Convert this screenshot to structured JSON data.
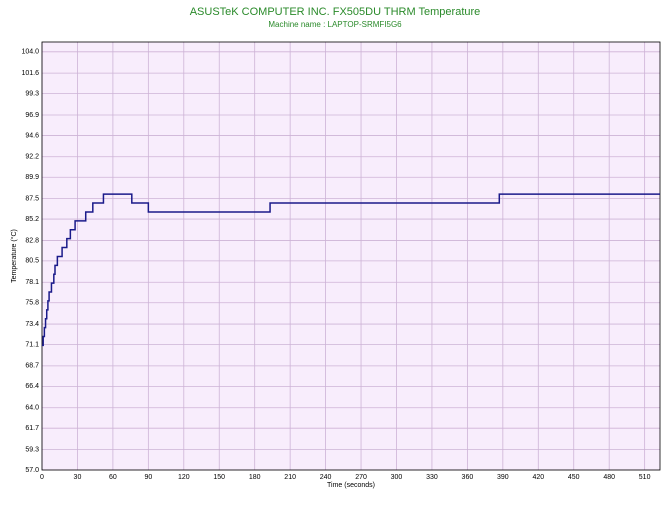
{
  "chart_data": {
    "type": "line",
    "title": "ASUSTeK COMPUTER INC. FX505DU THRM Temperature",
    "subtitle": "Machine name : LAPTOP-SRMFI5G6",
    "x_label": "Time (seconds)",
    "y_label": "Temperature (°C)",
    "drawstyle": "steps-post",
    "grid": true,
    "background": "#f8edfc",
    "grid_color": "#cdb3d6",
    "xlim": [
      0,
      523
    ],
    "xticks": [
      0,
      30,
      60,
      90,
      120,
      150,
      180,
      210,
      240,
      270,
      300,
      330,
      360,
      390,
      420,
      450,
      480,
      510
    ],
    "ylim": [
      57.0,
      105.1
    ],
    "yticks": [
      {
        "value": 57.0,
        "label": "57.0"
      },
      59.3,
      61.7,
      {
        "value": 64.0,
        "label": "64.0"
      },
      66.4,
      68.7,
      71.1,
      73.4,
      75.8,
      78.1,
      80.5,
      82.8,
      85.2,
      87.5,
      89.9,
      92.2,
      94.6,
      96.9,
      99.3,
      101.6,
      {
        "value": 104.0,
        "label": "104.0"
      }
    ],
    "series": [
      {
        "name": "THRM",
        "color": "#1a1a8a",
        "x": [
          0,
          1,
          2,
          3,
          4,
          5,
          6,
          8,
          10,
          11,
          13,
          17,
          21,
          24,
          28,
          37,
          43,
          52,
          76,
          90,
          193,
          387,
          523
        ],
        "values": [
          71,
          72,
          73,
          74,
          75,
          76,
          77,
          78,
          79,
          80,
          81,
          82,
          83,
          84,
          85,
          86,
          87,
          88,
          87,
          86,
          87,
          88,
          88
        ]
      }
    ]
  }
}
